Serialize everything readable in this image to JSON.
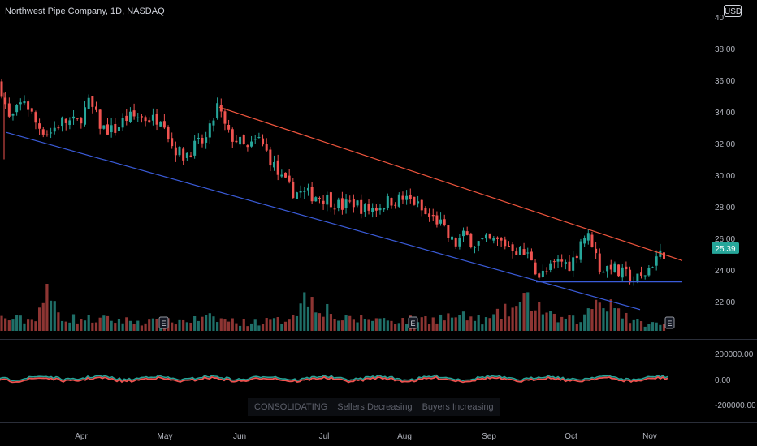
{
  "header": {
    "title": "Northwest Pipe Company, 1D, NASDAQ",
    "currency": "USD"
  },
  "price_axis": {
    "ticks": [
      "40.",
      "38.00",
      "36.00",
      "34.00",
      "32.00",
      "30.00",
      "28.00",
      "26.00",
      "24.00",
      "22.00"
    ],
    "last_price": "25.39"
  },
  "osc_axis": {
    "ticks": [
      "200000.00",
      "0.00",
      "-200000.00"
    ]
  },
  "x_axis": {
    "labels": [
      "Apr",
      "May",
      "Jun",
      "Jul",
      "Aug",
      "Sep",
      "Oct",
      "Nov"
    ]
  },
  "earnings_marker": "E",
  "indicator_legend": [
    "CONSOLIDATING",
    "Sellers Decreasing",
    "Buyers Increasing"
  ],
  "colors": {
    "up": "#26a69a",
    "down": "#ef5350",
    "upVol": "#1f6f68",
    "downVol": "#8e3533",
    "trendRed": "#f0553d",
    "trendBlue": "#3a5bd8",
    "support": "#3a5bd8"
  },
  "chart_data": {
    "type": "candlestick",
    "title": "Northwest Pipe Company, 1D, NASDAQ",
    "ylim": [
      20.6,
      40.1
    ],
    "price_path": [
      [
        0,
        35.8
      ],
      [
        12,
        33.4
      ],
      [
        30,
        34.8
      ],
      [
        45,
        33.2
      ],
      [
        60,
        32.6
      ],
      [
        75,
        33.4
      ],
      [
        95,
        33.3
      ],
      [
        110,
        34.6
      ],
      [
        125,
        33.0
      ],
      [
        140,
        32.8
      ],
      [
        155,
        33.6
      ],
      [
        170,
        33.7
      ],
      [
        190,
        33.5
      ],
      [
        200,
        33.9
      ],
      [
        210,
        32.0
      ],
      [
        225,
        31.2
      ],
      [
        240,
        31.8
      ],
      [
        255,
        32.3
      ],
      [
        268,
        34.4
      ],
      [
        280,
        32.6
      ],
      [
        292,
        32.2
      ],
      [
        305,
        31.6
      ],
      [
        318,
        32.3
      ],
      [
        330,
        31.3
      ],
      [
        345,
        29.8
      ],
      [
        360,
        29.0
      ],
      [
        375,
        28.8
      ],
      [
        390,
        28.7
      ],
      [
        405,
        28.5
      ],
      [
        420,
        28.0
      ],
      [
        435,
        28.3
      ],
      [
        450,
        27.8
      ],
      [
        465,
        28.0
      ],
      [
        480,
        28.4
      ],
      [
        495,
        28.5
      ],
      [
        510,
        28.3
      ],
      [
        525,
        27.4
      ],
      [
        540,
        27.1
      ],
      [
        550,
        26.2
      ],
      [
        560,
        25.6
      ],
      [
        572,
        26.2
      ],
      [
        585,
        25.7
      ],
      [
        600,
        25.8
      ],
      [
        615,
        25.8
      ],
      [
        630,
        25.5
      ],
      [
        645,
        25.0
      ],
      [
        655,
        24.8
      ],
      [
        662,
        23.6
      ],
      [
        672,
        23.8
      ],
      [
        680,
        24.2
      ],
      [
        690,
        24.6
      ],
      [
        700,
        24.3
      ],
      [
        708,
        24.8
      ],
      [
        715,
        25.9
      ],
      [
        722,
        26.2
      ],
      [
        730,
        25.7
      ],
      [
        737,
        24.2
      ],
      [
        745,
        24.0
      ],
      [
        752,
        24.4
      ],
      [
        760,
        23.8
      ],
      [
        770,
        23.7
      ],
      [
        780,
        23.4
      ],
      [
        790,
        23.5
      ],
      [
        800,
        24.2
      ],
      [
        808,
        24.8
      ],
      [
        815,
        25.0
      ],
      [
        822,
        25.4
      ]
    ],
    "volume_path": [
      [
        0,
        0.3
      ],
      [
        40,
        0.25
      ],
      [
        57,
        0.85
      ],
      [
        80,
        0.3
      ],
      [
        150,
        0.25
      ],
      [
        200,
        0.2
      ],
      [
        260,
        0.3
      ],
      [
        300,
        0.2
      ],
      [
        350,
        0.25
      ],
      [
        380,
        0.85
      ],
      [
        420,
        0.25
      ],
      [
        450,
        0.3
      ],
      [
        500,
        0.25
      ],
      [
        560,
        0.35
      ],
      [
        600,
        0.25
      ],
      [
        654,
        0.75
      ],
      [
        680,
        0.3
      ],
      [
        718,
        0.25
      ],
      [
        730,
        0.7
      ],
      [
        750,
        0.75
      ],
      [
        780,
        0.2
      ],
      [
        820,
        0.15
      ]
    ],
    "trendlines": [
      {
        "name": "resistance",
        "from": [
          270,
          34.3
        ],
        "to": [
          840,
          24.6
        ]
      },
      {
        "name": "support-channel",
        "from": [
          8,
          32.7
        ],
        "to": [
          788,
          21.5
        ]
      },
      {
        "name": "horizontal-support",
        "from": [
          660,
          23.25
        ],
        "to": [
          840,
          23.25
        ]
      }
    ],
    "earnings_x": [
      201,
      508,
      824
    ]
  }
}
